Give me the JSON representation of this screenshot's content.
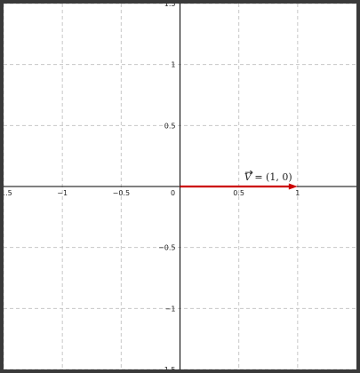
{
  "chart_data": {
    "type": "line",
    "title": "",
    "xlabel": "",
    "ylabel": "",
    "xlim": [
      -1.5,
      1.5
    ],
    "ylim": [
      -1.5,
      1.5
    ],
    "grid": true,
    "x_ticks": [
      -1.5,
      -1,
      -0.5,
      0,
      0.5,
      1
    ],
    "x_tick_labels": [
      "−1.5",
      "−1",
      "−0.5",
      "0",
      "0.5",
      "1"
    ],
    "y_ticks": [
      1.5,
      1,
      0.5,
      -0.5,
      -1,
      -1.5
    ],
    "y_tick_labels": [
      "1.5",
      "1",
      "0.5",
      "−0.5",
      "−1",
      "−1.5"
    ],
    "vector": {
      "from": [
        0,
        0
      ],
      "to": [
        1,
        0
      ],
      "color": "#cc0000"
    },
    "annotation": {
      "x": 0.75,
      "y": 0.05,
      "math": "V",
      "rest": " = (1, 0)"
    }
  }
}
